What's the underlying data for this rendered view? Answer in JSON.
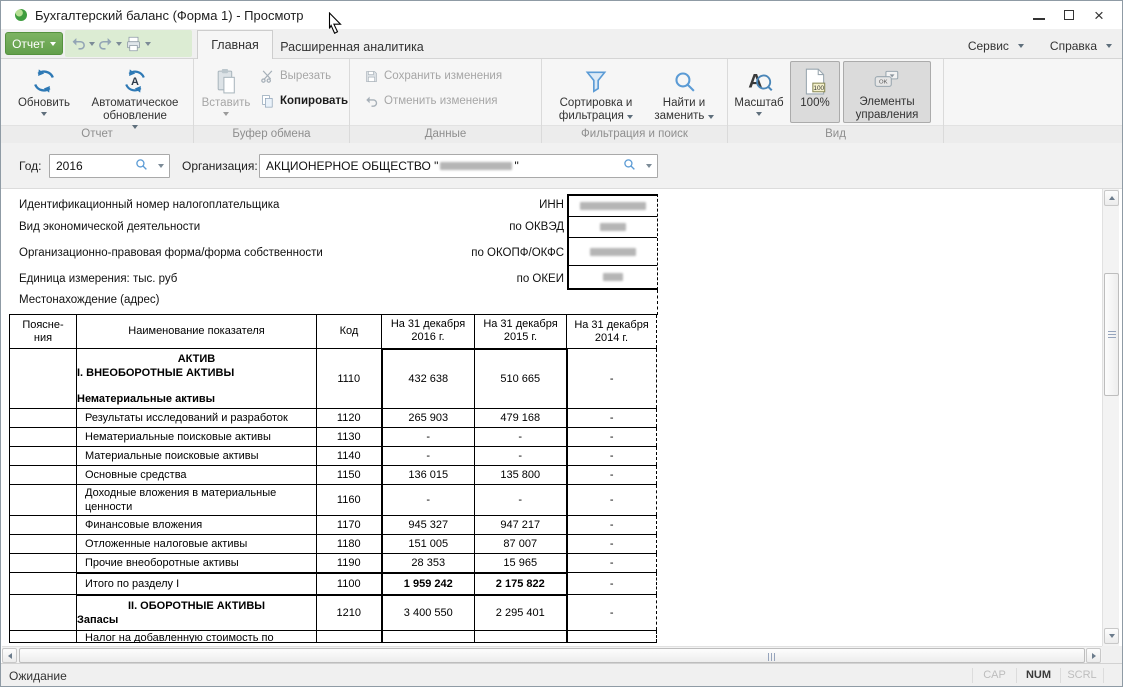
{
  "colors": {
    "accent_green": "#63a04c",
    "quickaccess_green": "#dcecd3",
    "icon_blue": "#2e79b5",
    "filter_blue": "#5b9bd5",
    "ribbon_bg": "#f6f6f6"
  },
  "window": {
    "title": "Бухгалтерский баланс (Форма 1) - Просмотр"
  },
  "menubar": {
    "report_button": "Отчет",
    "tabs": [
      {
        "label": "Главная"
      },
      {
        "label": "Расширенная аналитика"
      }
    ],
    "right_menus": [
      "Сервис",
      "Справка"
    ]
  },
  "ribbon": {
    "groups": [
      {
        "label": "Отчет"
      },
      {
        "label": "Буфер обмена"
      },
      {
        "label": "Данные"
      },
      {
        "label": "Фильтрация и поиск"
      },
      {
        "label": "Вид"
      }
    ],
    "buttons": {
      "refresh": "Обновить",
      "auto_refresh": "Автоматическое обновление",
      "paste": "Вставить",
      "cut": "Вырезать",
      "copy": "Копировать",
      "save_changes": "Сохранить изменения",
      "cancel_changes": "Отменить изменения",
      "sort_filter": "Сортировка и фильтрация",
      "find_replace": "Найти и заменить",
      "scale": "Масштаб",
      "zoom_100": "100%",
      "controls": "Элементы управления"
    },
    "icons": {
      "refresh": "circular-arrows",
      "auto_refresh": "circular-arrows-A",
      "paste": "clipboard",
      "cut": "scissors",
      "copy": "pages",
      "save_changes": "floppy",
      "cancel_changes": "curved-arrow-left",
      "sort_filter": "funnel",
      "find_replace": "magnifier",
      "scale": "letter-A-magnifier",
      "zoom_100": "page-100",
      "controls": "ok-button"
    }
  },
  "filterbar": {
    "year_label": "Год:",
    "year_value": "2016",
    "org_label": "Организация:",
    "org_value_prefix": "АКЦИОНЕРНОЕ ОБЩЕСТВО \"",
    "org_value_suffix": "\""
  },
  "doc_header": {
    "rows": [
      {
        "label": "Идентификационный номер налогоплательщика",
        "code": "ИНН",
        "value_redacted": true
      },
      {
        "label": "Вид экономической деятельности",
        "code": "по ОКВЭД",
        "value_redacted": true
      },
      {
        "label": "Организационно-правовая форма/форма собственности",
        "code": "по ОКОПФ/ОКФС",
        "value_redacted": true
      },
      {
        "label": "Единица измерения: тыс. руб",
        "code": "по ОКЕИ",
        "value_redacted": true
      }
    ],
    "address_label": "Местонахождение (адрес)"
  },
  "table": {
    "columns": [
      "Поясне-\nния",
      "Наименование показателя",
      "Код",
      "На 31 декабря\n2016 г.",
      "На 31 декабря\n2015 г.",
      "На 31 декабря\n2014 г."
    ],
    "rows": [
      {
        "cls": "r-first",
        "lines": [
          {
            "t": "АКТИВ",
            "c": "c b"
          },
          {
            "t": "I. ВНЕОБОРОТНЫЕ АКТИВЫ",
            "c": "b"
          },
          {
            "t": "",
            "c": "gap"
          },
          {
            "t": "Нематериальные активы",
            "c": "b"
          }
        ],
        "code": "1110",
        "v": [
          "432 638",
          "510 665",
          "-"
        ]
      },
      {
        "cls": "",
        "lines": [
          {
            "t": "Результаты исследований и разработок",
            "c": "n"
          }
        ],
        "code": "1120",
        "v": [
          "265 903",
          "479 168",
          "-"
        ]
      },
      {
        "cls": "",
        "lines": [
          {
            "t": "Нематериальные поисковые активы",
            "c": "n"
          }
        ],
        "code": "1130",
        "v": [
          "-",
          "-",
          "-"
        ]
      },
      {
        "cls": "",
        "lines": [
          {
            "t": "Материальные поисковые активы",
            "c": "n"
          }
        ],
        "code": "1140",
        "v": [
          "-",
          "-",
          "-"
        ]
      },
      {
        "cls": "",
        "lines": [
          {
            "t": "Основные средства",
            "c": "n"
          }
        ],
        "code": "1150",
        "v": [
          "136 015",
          "135 800",
          "-"
        ]
      },
      {
        "cls": "r-tall",
        "lines": [
          {
            "t": "Доходные вложения в материальные ценности",
            "c": "n"
          }
        ],
        "code": "1160",
        "v": [
          "-",
          "-",
          "-"
        ]
      },
      {
        "cls": "",
        "lines": [
          {
            "t": "Финансовые вложения",
            "c": "n"
          }
        ],
        "code": "1170",
        "v": [
          "945 327",
          "947 217",
          "-"
        ]
      },
      {
        "cls": "",
        "lines": [
          {
            "t": "Отложенные налоговые активы",
            "c": "n"
          }
        ],
        "code": "1180",
        "v": [
          "151 005",
          "87 007",
          "-"
        ]
      },
      {
        "cls": "",
        "lines": [
          {
            "t": "Прочие внеоборотные активы",
            "c": "n"
          }
        ],
        "code": "1190",
        "v": [
          "28 353",
          "15 965",
          "-"
        ]
      },
      {
        "cls": "r-total",
        "lines": [
          {
            "t": "Итого по разделу I",
            "c": "n"
          }
        ],
        "code": "1100",
        "v": [
          "1 959 242",
          "2 175 822",
          "-"
        ]
      },
      {
        "cls": "r-sec",
        "lines": [
          {
            "t": "II. ОБОРОТНЫЕ АКТИВЫ",
            "c": "c b"
          },
          {
            "t": "Запасы",
            "c": "b"
          }
        ],
        "code": "1210",
        "v": [
          "3 400 550",
          "2 295 401",
          "-"
        ]
      },
      {
        "cls": "r-cut",
        "lines": [
          {
            "t": "Налог на добавленную стоимость по",
            "c": "n"
          }
        ],
        "code": "",
        "v": [
          "",
          "",
          ""
        ]
      }
    ]
  },
  "statusbar": {
    "status": "Ожидание",
    "indicators": [
      "CAP",
      "NUM",
      "SCRL"
    ],
    "active_indicator": "NUM"
  }
}
